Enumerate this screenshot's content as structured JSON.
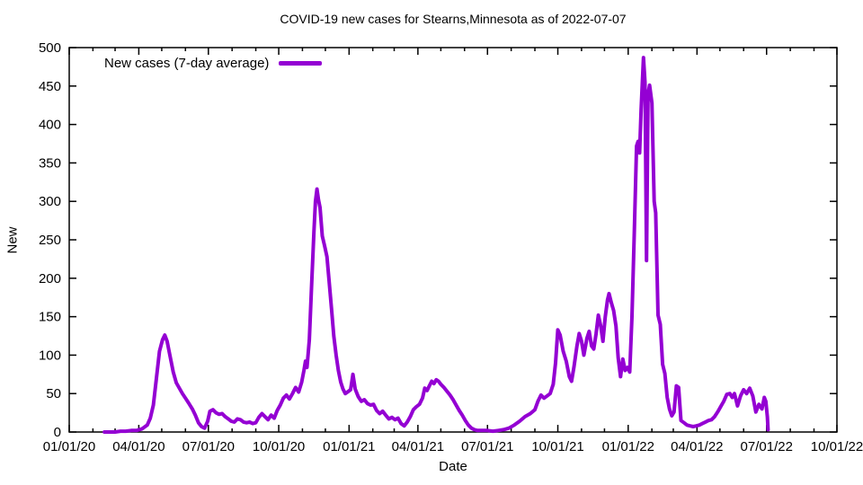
{
  "page": {
    "background": "#ffffff",
    "text_color": "#000000"
  },
  "chart_data": {
    "type": "line",
    "title": "COVID-19 new cases for Stearns,Minnesota as of 2022-07-07",
    "xlabel": "Date",
    "ylabel": "New",
    "grid": false,
    "legend": {
      "position": "top-left-inside",
      "entries": [
        {
          "label": "New cases (7-day average)",
          "color": "#9400D3"
        }
      ]
    },
    "line": {
      "color": "#9400D3",
      "width": 4
    },
    "x_axis": {
      "range": [
        "2020-01-01",
        "2022-10-01"
      ],
      "minor_tick_interval": "1 month",
      "major_ticks": [
        {
          "date": "2020-01-01",
          "label": "01/01/20"
        },
        {
          "date": "2020-04-01",
          "label": "04/01/20"
        },
        {
          "date": "2020-07-01",
          "label": "07/01/20"
        },
        {
          "date": "2020-10-01",
          "label": "10/01/20"
        },
        {
          "date": "2021-01-01",
          "label": "01/01/21"
        },
        {
          "date": "2021-04-01",
          "label": "04/01/21"
        },
        {
          "date": "2021-07-01",
          "label": "07/01/21"
        },
        {
          "date": "2021-10-01",
          "label": "10/01/21"
        },
        {
          "date": "2022-01-01",
          "label": "01/01/22"
        },
        {
          "date": "2022-04-01",
          "label": "04/01/22"
        },
        {
          "date": "2022-07-01",
          "label": "07/01/22"
        },
        {
          "date": "2022-10-01",
          "label": "10/01/22"
        }
      ]
    },
    "y_axis": {
      "range": [
        0,
        500
      ],
      "tick_step": 50,
      "ticks": [
        0,
        50,
        100,
        150,
        200,
        250,
        300,
        350,
        400,
        450,
        500
      ]
    },
    "series": [
      {
        "name": "New cases (7-day average)",
        "points": [
          [
            "2020-02-16",
            0
          ],
          [
            "2020-02-23",
            0
          ],
          [
            "2020-03-01",
            0
          ],
          [
            "2020-03-08",
            1
          ],
          [
            "2020-03-15",
            1
          ],
          [
            "2020-03-22",
            2
          ],
          [
            "2020-03-29",
            2
          ],
          [
            "2020-04-05",
            4
          ],
          [
            "2020-04-12",
            9
          ],
          [
            "2020-04-16",
            18
          ],
          [
            "2020-04-20",
            35
          ],
          [
            "2020-04-24",
            70
          ],
          [
            "2020-04-28",
            105
          ],
          [
            "2020-05-02",
            120
          ],
          [
            "2020-05-05",
            126
          ],
          [
            "2020-05-08",
            118
          ],
          [
            "2020-05-12",
            98
          ],
          [
            "2020-05-16",
            78
          ],
          [
            "2020-05-20",
            64
          ],
          [
            "2020-05-24",
            57
          ],
          [
            "2020-05-28",
            50
          ],
          [
            "2020-06-01",
            44
          ],
          [
            "2020-06-05",
            38
          ],
          [
            "2020-06-10",
            30
          ],
          [
            "2020-06-14",
            22
          ],
          [
            "2020-06-18",
            12
          ],
          [
            "2020-06-22",
            7
          ],
          [
            "2020-06-26",
            5
          ],
          [
            "2020-06-30",
            14
          ],
          [
            "2020-07-03",
            27
          ],
          [
            "2020-07-07",
            29
          ],
          [
            "2020-07-11",
            25
          ],
          [
            "2020-07-15",
            23
          ],
          [
            "2020-07-19",
            24
          ],
          [
            "2020-07-23",
            20
          ],
          [
            "2020-07-27",
            17
          ],
          [
            "2020-07-31",
            14
          ],
          [
            "2020-08-04",
            13
          ],
          [
            "2020-08-08",
            17
          ],
          [
            "2020-08-12",
            16
          ],
          [
            "2020-08-16",
            13
          ],
          [
            "2020-08-20",
            12
          ],
          [
            "2020-08-24",
            13
          ],
          [
            "2020-08-28",
            11
          ],
          [
            "2020-09-01",
            12
          ],
          [
            "2020-09-05",
            19
          ],
          [
            "2020-09-09",
            24
          ],
          [
            "2020-09-13",
            20
          ],
          [
            "2020-09-17",
            16
          ],
          [
            "2020-09-21",
            22
          ],
          [
            "2020-09-25",
            18
          ],
          [
            "2020-09-29",
            28
          ],
          [
            "2020-10-03",
            35
          ],
          [
            "2020-10-07",
            44
          ],
          [
            "2020-10-11",
            48
          ],
          [
            "2020-10-15",
            43
          ],
          [
            "2020-10-19",
            50
          ],
          [
            "2020-10-23",
            58
          ],
          [
            "2020-10-27",
            52
          ],
          [
            "2020-10-31",
            65
          ],
          [
            "2020-11-03",
            80
          ],
          [
            "2020-11-05",
            92
          ],
          [
            "2020-11-07",
            84
          ],
          [
            "2020-11-10",
            120
          ],
          [
            "2020-11-13",
            190
          ],
          [
            "2020-11-16",
            260
          ],
          [
            "2020-11-18",
            300
          ],
          [
            "2020-11-20",
            316
          ],
          [
            "2020-11-22",
            302
          ],
          [
            "2020-11-24",
            292
          ],
          [
            "2020-11-27",
            255
          ],
          [
            "2020-11-30",
            242
          ],
          [
            "2020-12-03",
            228
          ],
          [
            "2020-12-06",
            195
          ],
          [
            "2020-12-09",
            160
          ],
          [
            "2020-12-12",
            125
          ],
          [
            "2020-12-15",
            100
          ],
          [
            "2020-12-18",
            80
          ],
          [
            "2020-12-21",
            65
          ],
          [
            "2020-12-24",
            56
          ],
          [
            "2020-12-27",
            50
          ],
          [
            "2020-12-30",
            52
          ],
          [
            "2021-01-03",
            55
          ],
          [
            "2021-01-06",
            75
          ],
          [
            "2021-01-09",
            56
          ],
          [
            "2021-01-13",
            46
          ],
          [
            "2021-01-17",
            40
          ],
          [
            "2021-01-21",
            42
          ],
          [
            "2021-01-25",
            37
          ],
          [
            "2021-01-29",
            35
          ],
          [
            "2021-02-02",
            36
          ],
          [
            "2021-02-06",
            28
          ],
          [
            "2021-02-10",
            24
          ],
          [
            "2021-02-14",
            27
          ],
          [
            "2021-02-18",
            22
          ],
          [
            "2021-02-22",
            17
          ],
          [
            "2021-02-26",
            19
          ],
          [
            "2021-03-02",
            16
          ],
          [
            "2021-03-06",
            18
          ],
          [
            "2021-03-10",
            11
          ],
          [
            "2021-03-14",
            8
          ],
          [
            "2021-03-18",
            13
          ],
          [
            "2021-03-22",
            20
          ],
          [
            "2021-03-26",
            29
          ],
          [
            "2021-03-30",
            33
          ],
          [
            "2021-04-03",
            36
          ],
          [
            "2021-04-07",
            44
          ],
          [
            "2021-04-10",
            57
          ],
          [
            "2021-04-13",
            54
          ],
          [
            "2021-04-16",
            60
          ],
          [
            "2021-04-19",
            66
          ],
          [
            "2021-04-22",
            63
          ],
          [
            "2021-04-25",
            68
          ],
          [
            "2021-04-28",
            66
          ],
          [
            "2021-05-01",
            62
          ],
          [
            "2021-05-05",
            58
          ],
          [
            "2021-05-09",
            53
          ],
          [
            "2021-05-13",
            48
          ],
          [
            "2021-05-17",
            42
          ],
          [
            "2021-05-21",
            35
          ],
          [
            "2021-05-25",
            28
          ],
          [
            "2021-05-29",
            22
          ],
          [
            "2021-06-02",
            15
          ],
          [
            "2021-06-06",
            9
          ],
          [
            "2021-06-10",
            5
          ],
          [
            "2021-06-14",
            3
          ],
          [
            "2021-06-18",
            2
          ],
          [
            "2021-06-24",
            2
          ],
          [
            "2021-07-01",
            2
          ],
          [
            "2021-07-08",
            1
          ],
          [
            "2021-07-15",
            2
          ],
          [
            "2021-07-22",
            3
          ],
          [
            "2021-07-29",
            5
          ],
          [
            "2021-08-05",
            9
          ],
          [
            "2021-08-12",
            14
          ],
          [
            "2021-08-19",
            20
          ],
          [
            "2021-08-26",
            24
          ],
          [
            "2021-09-01",
            29
          ],
          [
            "2021-09-05",
            40
          ],
          [
            "2021-09-09",
            48
          ],
          [
            "2021-09-13",
            44
          ],
          [
            "2021-09-17",
            47
          ],
          [
            "2021-09-21",
            50
          ],
          [
            "2021-09-25",
            62
          ],
          [
            "2021-09-28",
            90
          ],
          [
            "2021-10-01",
            133
          ],
          [
            "2021-10-04",
            126
          ],
          [
            "2021-10-08",
            105
          ],
          [
            "2021-10-12",
            92
          ],
          [
            "2021-10-16",
            72
          ],
          [
            "2021-10-19",
            66
          ],
          [
            "2021-10-22",
            84
          ],
          [
            "2021-10-26",
            112
          ],
          [
            "2021-10-29",
            128
          ],
          [
            "2021-11-01",
            118
          ],
          [
            "2021-11-04",
            100
          ],
          [
            "2021-11-08",
            122
          ],
          [
            "2021-11-11",
            131
          ],
          [
            "2021-11-14",
            112
          ],
          [
            "2021-11-17",
            108
          ],
          [
            "2021-11-20",
            128
          ],
          [
            "2021-11-23",
            152
          ],
          [
            "2021-11-26",
            138
          ],
          [
            "2021-11-29",
            118
          ],
          [
            "2021-12-02",
            150
          ],
          [
            "2021-12-05",
            172
          ],
          [
            "2021-12-07",
            180
          ],
          [
            "2021-12-10",
            168
          ],
          [
            "2021-12-13",
            158
          ],
          [
            "2021-12-16",
            138
          ],
          [
            "2021-12-19",
            96
          ],
          [
            "2021-12-22",
            72
          ],
          [
            "2021-12-25",
            95
          ],
          [
            "2021-12-28",
            80
          ],
          [
            "2021-12-31",
            84
          ],
          [
            "2022-01-03",
            78
          ],
          [
            "2022-01-06",
            150
          ],
          [
            "2022-01-09",
            260
          ],
          [
            "2022-01-12",
            372
          ],
          [
            "2022-01-14",
            378
          ],
          [
            "2022-01-16",
            363
          ],
          [
            "2022-01-18",
            420
          ],
          [
            "2022-01-21",
            487
          ],
          [
            "2022-01-23",
            455
          ],
          [
            "2022-01-25",
            223
          ],
          [
            "2022-01-27",
            440
          ],
          [
            "2022-01-29",
            451
          ],
          [
            "2022-02-01",
            428
          ],
          [
            "2022-02-04",
            300
          ],
          [
            "2022-02-06",
            285
          ],
          [
            "2022-02-09",
            152
          ],
          [
            "2022-02-12",
            140
          ],
          [
            "2022-02-15",
            88
          ],
          [
            "2022-02-18",
            76
          ],
          [
            "2022-02-21",
            45
          ],
          [
            "2022-02-24",
            30
          ],
          [
            "2022-02-27",
            21
          ],
          [
            "2022-03-02",
            26
          ],
          [
            "2022-03-05",
            60
          ],
          [
            "2022-03-08",
            58
          ],
          [
            "2022-03-11",
            15
          ],
          [
            "2022-03-15",
            12
          ],
          [
            "2022-03-19",
            9
          ],
          [
            "2022-03-23",
            8
          ],
          [
            "2022-03-27",
            7
          ],
          [
            "2022-03-31",
            8
          ],
          [
            "2022-04-04",
            9
          ],
          [
            "2022-04-08",
            11
          ],
          [
            "2022-04-12",
            13
          ],
          [
            "2022-04-16",
            15
          ],
          [
            "2022-04-20",
            16
          ],
          [
            "2022-04-24",
            20
          ],
          [
            "2022-04-28",
            26
          ],
          [
            "2022-05-02",
            33
          ],
          [
            "2022-05-06",
            40
          ],
          [
            "2022-05-10",
            49
          ],
          [
            "2022-05-14",
            50
          ],
          [
            "2022-05-17",
            45
          ],
          [
            "2022-05-20",
            50
          ],
          [
            "2022-05-24",
            34
          ],
          [
            "2022-05-28",
            47
          ],
          [
            "2022-06-01",
            55
          ],
          [
            "2022-06-05",
            50
          ],
          [
            "2022-06-09",
            57
          ],
          [
            "2022-06-13",
            47
          ],
          [
            "2022-06-17",
            26
          ],
          [
            "2022-06-21",
            36
          ],
          [
            "2022-06-25",
            30
          ],
          [
            "2022-06-28",
            45
          ],
          [
            "2022-06-30",
            40
          ],
          [
            "2022-07-02",
            20
          ],
          [
            "2022-07-03",
            3
          ]
        ]
      }
    ]
  }
}
